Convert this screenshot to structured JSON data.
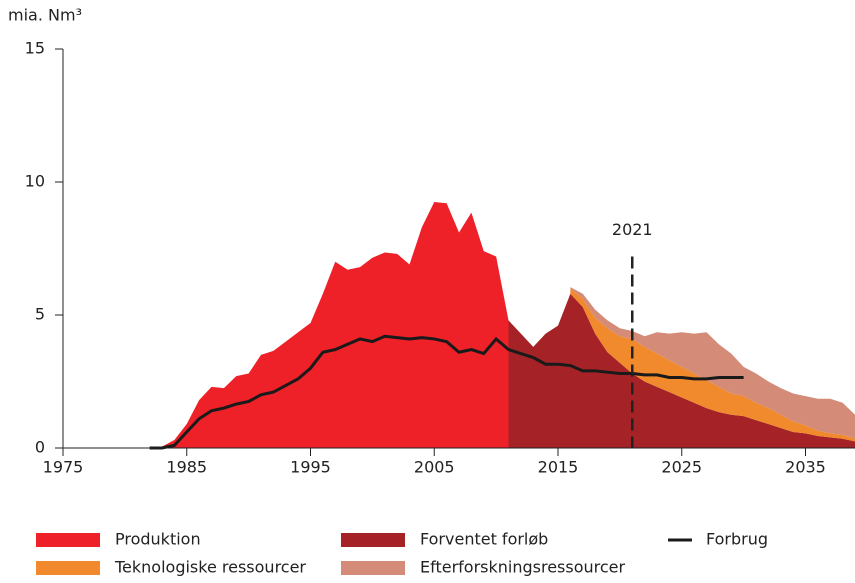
{
  "chart_data": {
    "type": "area",
    "y_label": "mia. Nm³",
    "xlim": [
      1975,
      2039
    ],
    "xticks": [
      1975,
      1985,
      1995,
      2005,
      2015,
      2025,
      2035
    ],
    "ylim": [
      0,
      15
    ],
    "yticks": [
      0,
      5,
      10,
      15
    ],
    "x": [
      1982,
      1983,
      1984,
      1985,
      1986,
      1987,
      1988,
      1989,
      1990,
      1991,
      1992,
      1993,
      1994,
      1995,
      1996,
      1997,
      1998,
      1999,
      2000,
      2001,
      2002,
      2003,
      2004,
      2005,
      2006,
      2007,
      2008,
      2009,
      2010,
      2011,
      2012,
      2013,
      2014,
      2015,
      2016,
      2017,
      2018,
      2019,
      2020,
      2021,
      2022,
      2023,
      2024,
      2025,
      2026,
      2027,
      2028,
      2029,
      2030,
      2031,
      2032,
      2033,
      2034,
      2035,
      2036,
      2037,
      2038,
      2039
    ],
    "series": [
      {
        "name": "Produktion",
        "color": "#ee2028",
        "kind": "area",
        "stack": false,
        "values": [
          0,
          0.05,
          0.3,
          0.9,
          1.8,
          2.3,
          2.25,
          2.7,
          2.8,
          3.5,
          3.65,
          4.0,
          4.35,
          4.7,
          5.8,
          7.0,
          6.7,
          6.8,
          7.15,
          7.35,
          7.3,
          6.9,
          8.3,
          9.25,
          9.2,
          8.1,
          8.85,
          7.4,
          7.2,
          4.8,
          null,
          null,
          null,
          null,
          null,
          null,
          null,
          null,
          null,
          null,
          null,
          null,
          null,
          null,
          null,
          null,
          null,
          null,
          null,
          null,
          null,
          null,
          null,
          null,
          null,
          null,
          null,
          null
        ]
      },
      {
        "name": "Forventet forløb",
        "color": "#a52327",
        "kind": "area",
        "stack": true,
        "values": [
          null,
          null,
          null,
          null,
          null,
          null,
          null,
          null,
          null,
          null,
          null,
          null,
          null,
          null,
          null,
          null,
          null,
          null,
          null,
          null,
          null,
          null,
          null,
          null,
          null,
          null,
          null,
          null,
          null,
          4.8,
          4.3,
          3.8,
          4.3,
          4.6,
          5.8,
          5.3,
          4.3,
          3.6,
          3.2,
          2.8,
          2.5,
          2.3,
          2.1,
          1.9,
          1.7,
          1.5,
          1.35,
          1.25,
          1.2,
          1.05,
          0.9,
          0.75,
          0.6,
          0.55,
          0.45,
          0.4,
          0.35,
          0.25
        ]
      },
      {
        "name": "Teknologiske ressourcer",
        "color": "#f08a2c",
        "kind": "area",
        "stack": true,
        "values": [
          null,
          null,
          null,
          null,
          null,
          null,
          null,
          null,
          null,
          null,
          null,
          null,
          null,
          null,
          null,
          null,
          null,
          null,
          null,
          null,
          null,
          null,
          null,
          null,
          null,
          null,
          null,
          null,
          null,
          null,
          null,
          null,
          null,
          null,
          0.2,
          0.3,
          0.6,
          0.9,
          1.0,
          1.3,
          1.3,
          1.25,
          1.2,
          1.15,
          1.1,
          1.05,
          0.95,
          0.8,
          0.75,
          0.65,
          0.6,
          0.5,
          0.4,
          0.3,
          0.2,
          0.15,
          0.15,
          0.1
        ]
      },
      {
        "name": "Efterforskningsressourcer",
        "color": "#d48b78",
        "kind": "area",
        "stack": true,
        "values": [
          null,
          null,
          null,
          null,
          null,
          null,
          null,
          null,
          null,
          null,
          null,
          null,
          null,
          null,
          null,
          null,
          null,
          null,
          null,
          null,
          null,
          null,
          null,
          null,
          null,
          null,
          null,
          null,
          null,
          null,
          null,
          null,
          null,
          null,
          0.05,
          0.2,
          0.3,
          0.3,
          0.3,
          0.3,
          0.4,
          0.8,
          1.0,
          1.3,
          1.5,
          1.8,
          1.6,
          1.5,
          1.1,
          1.1,
          1.0,
          1.0,
          1.05,
          1.1,
          1.2,
          1.3,
          1.2,
          0.9
        ]
      },
      {
        "name": "Forbrug",
        "color": "#1a1a1a",
        "kind": "line",
        "stack": false,
        "values": [
          0,
          0,
          0.1,
          0.6,
          1.1,
          1.4,
          1.5,
          1.65,
          1.75,
          2.0,
          2.1,
          2.35,
          2.6,
          3.0,
          3.6,
          3.7,
          3.9,
          4.1,
          4.0,
          4.2,
          4.15,
          4.1,
          4.15,
          4.1,
          4.0,
          3.6,
          3.7,
          3.55,
          4.1,
          3.7,
          3.55,
          3.4,
          3.15,
          3.15,
          3.1,
          2.9,
          2.9,
          2.85,
          2.8,
          2.8,
          2.75,
          2.75,
          2.65,
          2.65,
          2.6,
          2.6,
          2.65,
          2.65,
          2.65,
          null,
          null,
          null,
          null,
          null,
          null,
          null,
          null,
          null
        ]
      }
    ],
    "annotations": [
      {
        "text": "2021",
        "x": 2021,
        "y_top": 7.2
      }
    ]
  }
}
